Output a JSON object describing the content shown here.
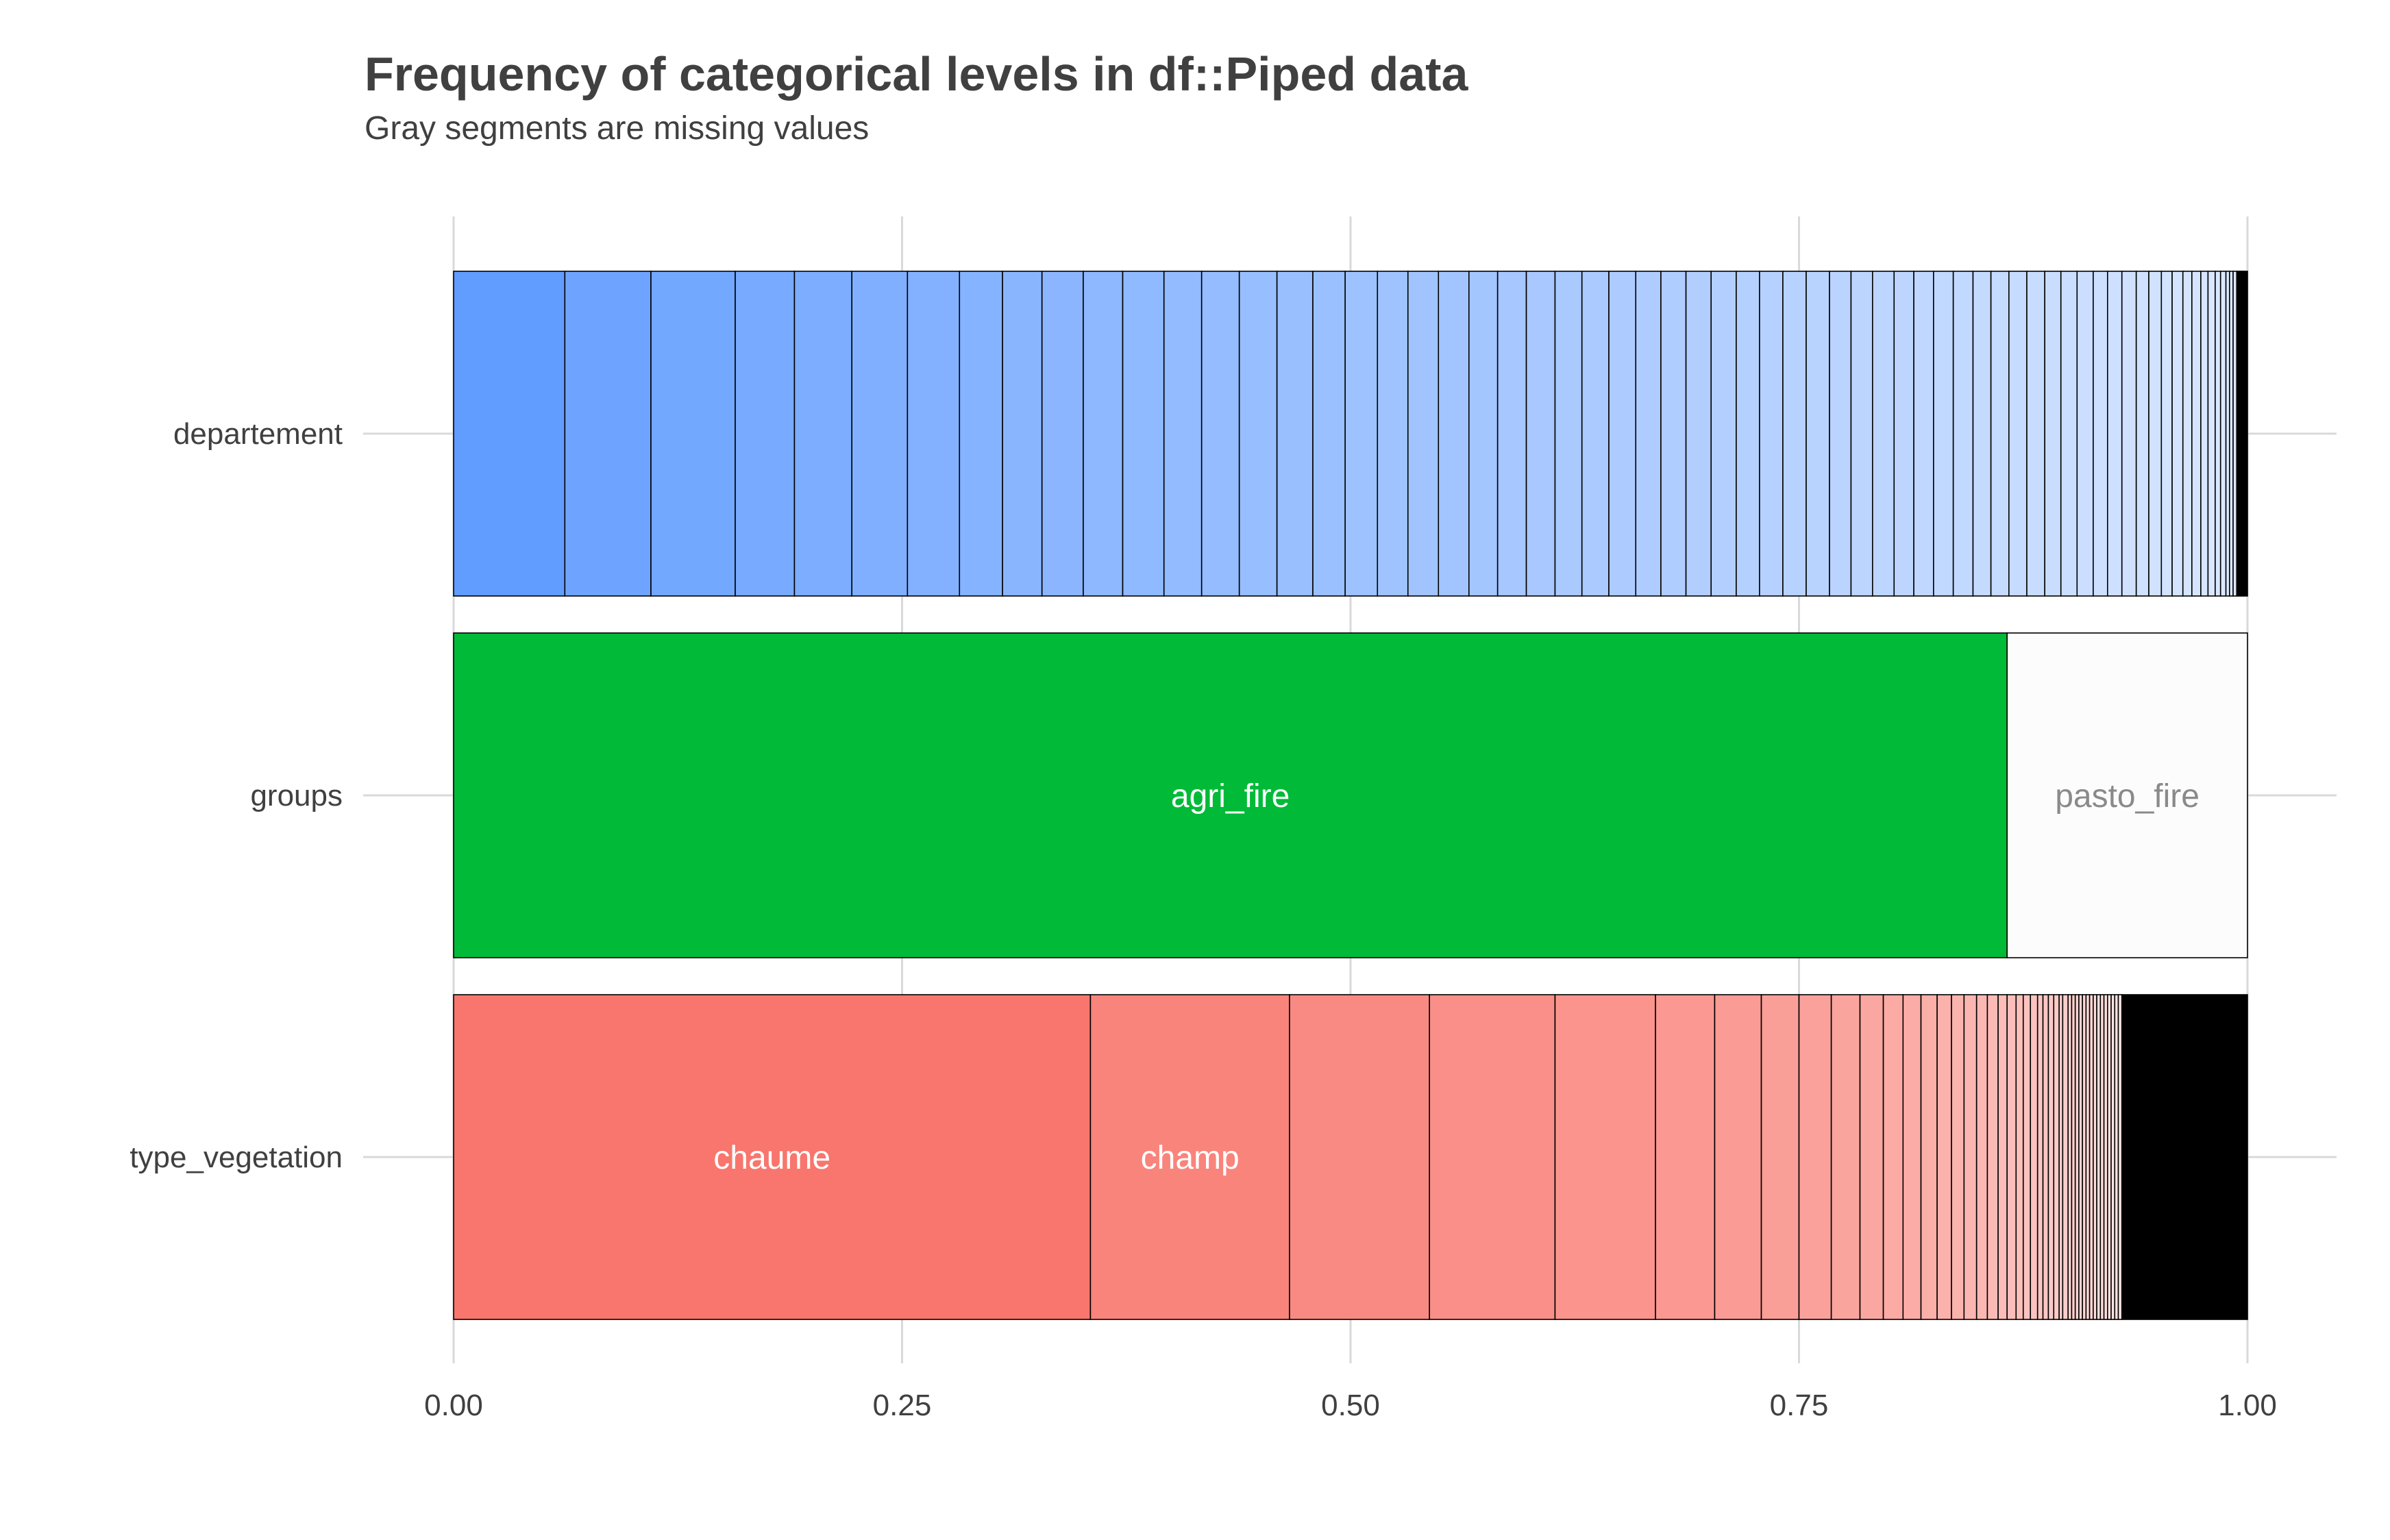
{
  "chart_data": {
    "type": "bar",
    "orientation": "horizontal",
    "stacked": "proportional",
    "title": "Frequency of categorical levels in df::Piped data",
    "subtitle": "Gray segments are missing values",
    "x_ticks": [
      "0.00",
      "0.25",
      "0.50",
      "0.75",
      "1.00"
    ],
    "xlim": [
      0,
      1
    ],
    "grid": true,
    "legend": "none",
    "series": [
      {
        "name": "departement",
        "base_color": "#619CFF",
        "boundaries": [
          0.062,
          0.11,
          0.157,
          0.19,
          0.222,
          0.253,
          0.282,
          0.306,
          0.328,
          0.351,
          0.373,
          0.396,
          0.417,
          0.438,
          0.459,
          0.479,
          0.497,
          0.515,
          0.532,
          0.549,
          0.566,
          0.582,
          0.598,
          0.614,
          0.629,
          0.644,
          0.659,
          0.673,
          0.687,
          0.701,
          0.715,
          0.728,
          0.741,
          0.754,
          0.767,
          0.779,
          0.791,
          0.803,
          0.814,
          0.825,
          0.836,
          0.847,
          0.857,
          0.867,
          0.877,
          0.887,
          0.896,
          0.905,
          0.914,
          0.922,
          0.93,
          0.938,
          0.945,
          0.952,
          0.958,
          0.964,
          0.969,
          0.974,
          0.978,
          0.982,
          0.985,
          0.988,
          0.99,
          0.992,
          0.994,
          0.995,
          0.996,
          0.997,
          0.998
        ],
        "tail_black_from": 0.993,
        "labels": []
      },
      {
        "name": "groups",
        "base_color": "#00BA38",
        "boundaries": [
          0.866
        ],
        "tail_black_from": null,
        "segment_colors": [
          "#00BA38",
          "#FCFCFC"
        ],
        "labels": [
          {
            "segment": 0,
            "text": "agri_fire",
            "color": "#ffffff"
          },
          {
            "segment": 1,
            "text": "pasto_fire",
            "color": "#8a8a8a"
          }
        ]
      },
      {
        "name": "type_vegetation",
        "base_color": "#F8766D",
        "boundaries": [
          0.355,
          0.466,
          0.544,
          0.614,
          0.67,
          0.703,
          0.729,
          0.75,
          0.768,
          0.784,
          0.797,
          0.808,
          0.818,
          0.827,
          0.835,
          0.842,
          0.849,
          0.855,
          0.861,
          0.866,
          0.871,
          0.875,
          0.879,
          0.883,
          0.886,
          0.889,
          0.892,
          0.895,
          0.897,
          0.9,
          0.902,
          0.904,
          0.906,
          0.908,
          0.91,
          0.912,
          0.914,
          0.916,
          0.918,
          0.92,
          0.922,
          0.924,
          0.926,
          0.928,
          0.93
        ],
        "tail_black_from": 0.93,
        "labels": [
          {
            "segment": 0,
            "text": "chaume",
            "color": "#ffffff"
          },
          {
            "segment": 1,
            "text": "champ",
            "color": "#ffffff"
          }
        ]
      }
    ]
  }
}
